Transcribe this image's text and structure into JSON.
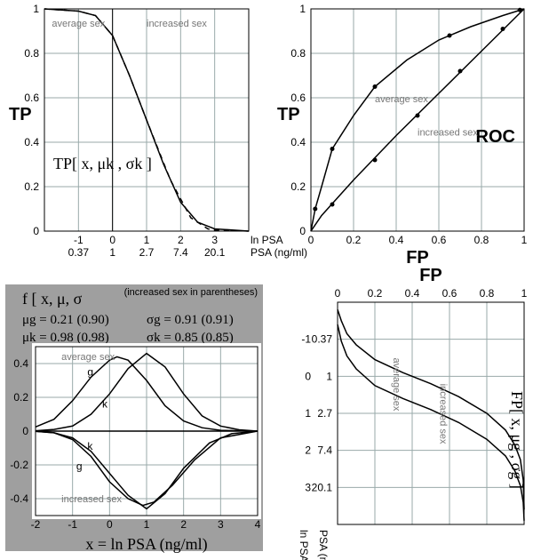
{
  "colors": {
    "bg": "#ffffff",
    "grid": "#99aaaa",
    "axis": "#000000",
    "curve": "#000000",
    "panel_bg": "#9f9f9f",
    "label_gray": "#777777"
  },
  "tp_plot": {
    "type": "line",
    "title": "TP",
    "formula": "TP[ x, μk , σk ]",
    "x_ticks": [
      -1,
      0,
      1,
      2,
      3
    ],
    "x_sub_labels": [
      "0.37",
      "1",
      "2.7",
      "7.4",
      "20.1"
    ],
    "x_sub_name": "PSA (ng/ml)",
    "x_top_name": "ln PSA",
    "ylim": [
      0,
      1
    ],
    "y_ticks": [
      0,
      0.2,
      0.4,
      0.6,
      0.8,
      1
    ],
    "label_avg": "average sex",
    "label_inc": "increased sex",
    "curve_avg": {
      "style": "solid",
      "points": [
        [
          -2,
          1
        ],
        [
          -1,
          0.99
        ],
        [
          -0.5,
          0.97
        ],
        [
          0,
          0.88
        ],
        [
          0.5,
          0.7
        ],
        [
          1,
          0.5
        ],
        [
          1.5,
          0.3
        ],
        [
          2,
          0.13
        ],
        [
          2.5,
          0.04
        ],
        [
          3,
          0.01
        ],
        [
          4,
          0
        ]
      ]
    },
    "curve_inc": {
      "style": "dash",
      "points": [
        [
          -2,
          1
        ],
        [
          -1,
          0.99
        ],
        [
          -0.5,
          0.97
        ],
        [
          0,
          0.88
        ],
        [
          0.5,
          0.7
        ],
        [
          1,
          0.5
        ],
        [
          1.7,
          0.23
        ],
        [
          2.3,
          0.06
        ],
        [
          2.8,
          0.01
        ],
        [
          3,
          0.005
        ],
        [
          4,
          0
        ]
      ]
    }
  },
  "roc_plot": {
    "type": "line",
    "title": "ROC",
    "ylabel": "TP",
    "xlabel": "FP",
    "xlim": [
      0,
      1
    ],
    "ylim": [
      0,
      1
    ],
    "x_ticks": [
      0,
      0.2,
      0.4,
      0.6,
      0.8,
      1
    ],
    "y_ticks": [
      0,
      0.2,
      0.4,
      0.6,
      0.8,
      1
    ],
    "label_avg": "average sex",
    "label_inc": "increased sex",
    "points_avg": [
      [
        0.02,
        0.1
      ],
      [
        0.1,
        0.37
      ],
      [
        0.3,
        0.65
      ],
      [
        0.65,
        0.88
      ],
      [
        0.98,
        0.995
      ]
    ],
    "curve_avg": [
      [
        0,
        0
      ],
      [
        0.02,
        0.1
      ],
      [
        0.05,
        0.2
      ],
      [
        0.1,
        0.37
      ],
      [
        0.2,
        0.52
      ],
      [
        0.3,
        0.65
      ],
      [
        0.45,
        0.77
      ],
      [
        0.6,
        0.86
      ],
      [
        0.75,
        0.92
      ],
      [
        0.9,
        0.97
      ],
      [
        1,
        1
      ]
    ],
    "points_inc": [
      [
        0.1,
        0.12
      ],
      [
        0.3,
        0.32
      ],
      [
        0.5,
        0.52
      ],
      [
        0.7,
        0.72
      ],
      [
        0.9,
        0.91
      ]
    ],
    "curve_inc": [
      [
        0,
        0
      ],
      [
        0.05,
        0.07
      ],
      [
        0.2,
        0.23
      ],
      [
        0.4,
        0.43
      ],
      [
        0.6,
        0.62
      ],
      [
        0.8,
        0.81
      ],
      [
        1,
        1
      ]
    ]
  },
  "pdf_plot": {
    "type": "line",
    "panel_title": "f [ x, μ, σ",
    "paren_note": "(increased sex in parentheses)",
    "params": {
      "mu_g": "μg = 0.21 (0.90)",
      "sigma_g": "σg = 0.91 (0.91)",
      "mu_k": "μk = 0.98 (0.98)",
      "sigma_k": "σk = 0.85 (0.85)"
    },
    "xlabel": "x = ln PSA  (ng/ml)",
    "xlim": [
      -2,
      4
    ],
    "x_ticks": [
      -2,
      -1,
      0,
      1,
      2,
      3,
      4
    ],
    "ylim": [
      -0.5,
      0.5
    ],
    "y_ticks": [
      -0.4,
      -0.2,
      0,
      0.2,
      0.4
    ],
    "label_avg": "average sex",
    "label_inc": "increased sex",
    "label_g": "g",
    "label_k": "k",
    "curve_g_pos": [
      [
        -2,
        0.025
      ],
      [
        -1.5,
        0.07
      ],
      [
        -1,
        0.18
      ],
      [
        -0.5,
        0.32
      ],
      [
        0,
        0.42
      ],
      [
        0.2,
        0.44
      ],
      [
        0.5,
        0.42
      ],
      [
        1,
        0.3
      ],
      [
        1.5,
        0.15
      ],
      [
        2,
        0.06
      ],
      [
        2.5,
        0.02
      ],
      [
        3,
        0.005
      ],
      [
        4,
        0
      ]
    ],
    "curve_k_pos": [
      [
        -2,
        0.002
      ],
      [
        -1.5,
        0.01
      ],
      [
        -1,
        0.03
      ],
      [
        -0.5,
        0.1
      ],
      [
        0,
        0.22
      ],
      [
        0.5,
        0.37
      ],
      [
        1,
        0.46
      ],
      [
        1.5,
        0.38
      ],
      [
        2,
        0.22
      ],
      [
        2.5,
        0.09
      ],
      [
        3,
        0.03
      ],
      [
        3.5,
        0.008
      ],
      [
        4,
        0
      ]
    ],
    "curve_g_neg": [
      [
        -2,
        -0.001
      ],
      [
        -1.5,
        -0.01
      ],
      [
        -1,
        -0.05
      ],
      [
        -0.5,
        -0.15
      ],
      [
        0,
        -0.3
      ],
      [
        0.5,
        -0.4
      ],
      [
        0.9,
        -0.44
      ],
      [
        1.2,
        -0.42
      ],
      [
        1.7,
        -0.32
      ],
      [
        2.3,
        -0.17
      ],
      [
        3,
        -0.04
      ],
      [
        4,
        0
      ]
    ],
    "curve_k_neg": [
      [
        -2,
        -0.001
      ],
      [
        -1.5,
        -0.01
      ],
      [
        -1,
        -0.04
      ],
      [
        -0.5,
        -0.12
      ],
      [
        0,
        -0.25
      ],
      [
        0.5,
        -0.38
      ],
      [
        1,
        -0.46
      ],
      [
        1.5,
        -0.37
      ],
      [
        2,
        -0.22
      ],
      [
        2.7,
        -0.07
      ],
      [
        3.3,
        -0.015
      ],
      [
        4,
        0
      ]
    ]
  },
  "fp_plot": {
    "type": "line",
    "title": "FP[ x, μg , σg ]",
    "xlabel": "FP",
    "xlim": [
      0,
      1
    ],
    "x_ticks": [
      0,
      0.2,
      0.4,
      0.6,
      0.8,
      1
    ],
    "y_ticks": [
      -1,
      0,
      1,
      2,
      3
    ],
    "y_sub": [
      "0.37",
      "1",
      "2.7",
      "7.4",
      "20.1"
    ],
    "y_name_top": "ln PSA",
    "y_name_bot": "PSA (ng/ml)",
    "label_avg": "average sex",
    "label_inc": "increased sex",
    "curve_avg": [
      [
        0,
        -1.8
      ],
      [
        0.02,
        -1.5
      ],
      [
        0.05,
        -1.15
      ],
      [
        0.1,
        -0.85
      ],
      [
        0.2,
        -0.45
      ],
      [
        0.35,
        -0.1
      ],
      [
        0.5,
        0.2
      ],
      [
        0.65,
        0.55
      ],
      [
        0.8,
        1.0
      ],
      [
        0.9,
        1.45
      ],
      [
        0.95,
        1.85
      ],
      [
        0.98,
        2.25
      ],
      [
        0.995,
        2.8
      ],
      [
        1,
        3.6
      ]
    ],
    "curve_inc": [
      [
        0,
        -1.4
      ],
      [
        0.02,
        -0.95
      ],
      [
        0.05,
        -0.55
      ],
      [
        0.1,
        -0.2
      ],
      [
        0.2,
        0.25
      ],
      [
        0.35,
        0.6
      ],
      [
        0.5,
        0.9
      ],
      [
        0.65,
        1.25
      ],
      [
        0.8,
        1.7
      ],
      [
        0.9,
        2.15
      ],
      [
        0.95,
        2.55
      ],
      [
        0.98,
        2.95
      ],
      [
        0.995,
        3.4
      ],
      [
        1,
        3.9
      ]
    ]
  }
}
